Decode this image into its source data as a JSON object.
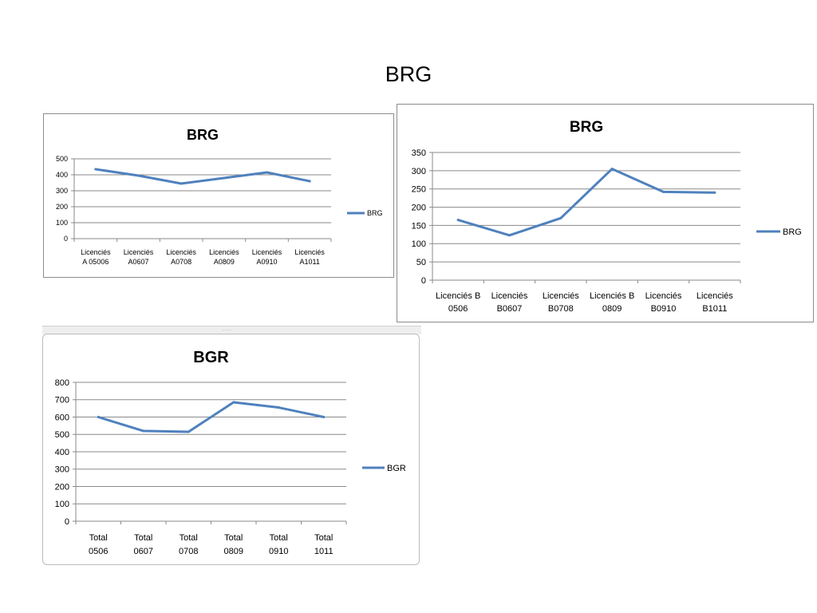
{
  "slide": {
    "title": "BRG"
  },
  "chart_data": [
    {
      "type": "line",
      "title": "BRG",
      "categories": [
        "Licenciés A 05006",
        "Licenciés A0607",
        "Licenciés A0708",
        "Licenciés A0809",
        "Licenciés A0910",
        "Licenciés A1011"
      ],
      "category_lines": [
        [
          "Licenciés",
          "A 05006"
        ],
        [
          "Licenciés",
          "A0607"
        ],
        [
          "Licenciés",
          "A0708"
        ],
        [
          "Licenciés",
          "A0809"
        ],
        [
          "Licenciés",
          "A0910"
        ],
        [
          "Licenciés",
          "A1011"
        ]
      ],
      "series": [
        {
          "name": "BRG",
          "values": [
            435,
            395,
            345,
            380,
            415,
            360
          ],
          "color": "#4f81bd"
        }
      ],
      "ylim": [
        0,
        500
      ],
      "yticks": [
        0,
        100,
        200,
        300,
        400,
        500
      ],
      "grid": true,
      "legend": "right"
    },
    {
      "type": "line",
      "title": "BRG",
      "categories": [
        "Licenciés B 0506",
        "Licenciés B0607",
        "Licenciés B0708",
        "Licenciés B 0809",
        "Licenciés B0910",
        "Licenciés B1011"
      ],
      "category_lines": [
        [
          "Licenciés B",
          "0506"
        ],
        [
          "Licenciés",
          "B0607"
        ],
        [
          "Licenciés",
          "B0708"
        ],
        [
          "Licenciés B",
          "0809"
        ],
        [
          "Licenciés",
          "B0910"
        ],
        [
          "Licenciés",
          "B1011"
        ]
      ],
      "series": [
        {
          "name": "BRG",
          "values": [
            165,
            123,
            170,
            305,
            242,
            240
          ],
          "color": "#4f81bd"
        }
      ],
      "ylim": [
        0,
        350
      ],
      "yticks": [
        0,
        50,
        100,
        150,
        200,
        250,
        300,
        350
      ],
      "grid": true,
      "legend": "right"
    },
    {
      "type": "line",
      "title": "BGR",
      "categories": [
        "Total 0506",
        "Total 0607",
        "Total 0708",
        "Total 0809",
        "Total 0910",
        "Total 1011"
      ],
      "category_lines": [
        [
          "Total",
          "0506"
        ],
        [
          "Total",
          "0607"
        ],
        [
          "Total",
          "0708"
        ],
        [
          "Total",
          "0809"
        ],
        [
          "Total",
          "0910"
        ],
        [
          "Total",
          "1011"
        ]
      ],
      "series": [
        {
          "name": "BGR",
          "values": [
            600,
            520,
            515,
            685,
            655,
            600
          ],
          "color": "#4f81bd"
        }
      ],
      "ylim": [
        0,
        800
      ],
      "yticks": [
        0,
        100,
        200,
        300,
        400,
        500,
        600,
        700,
        800
      ],
      "grid": true,
      "legend": "right"
    }
  ]
}
